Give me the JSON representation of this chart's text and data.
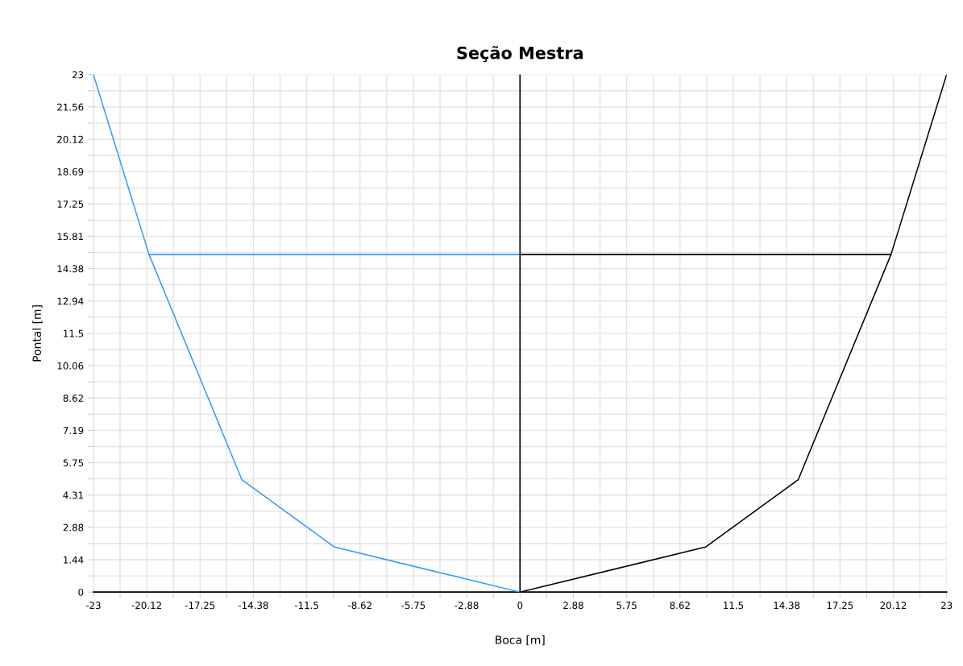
{
  "chart_data": {
    "type": "line",
    "title": "Seção Mestra",
    "xlabel": "Boca [m]",
    "ylabel": "Pontal [m]",
    "series": [
      {
        "color": "#3399ff",
        "x": [
          -23,
          -20,
          -15,
          -10,
          0
        ],
        "values": [
          23,
          15,
          5,
          2,
          0
        ]
      },
      {
        "color": "#3399ff",
        "x": [
          -20,
          0
        ],
        "values": [
          15,
          15
        ]
      },
      {
        "color": "#000000",
        "x": [
          0,
          10,
          15,
          20,
          23
        ],
        "values": [
          0,
          2,
          5,
          15,
          23
        ]
      },
      {
        "color": "#000000",
        "x": [
          0,
          20
        ],
        "values": [
          15,
          15
        ]
      }
    ],
    "ref_lines": [
      {
        "axis": "x",
        "value": 0,
        "color": "#000000"
      }
    ],
    "xlim": [
      -23,
      23
    ],
    "ylim": [
      0,
      23
    ],
    "xticks": [
      -23,
      {
        "value": -21.5625,
        "label": null
      },
      {
        "value": -20.125,
        "label": "-20.12"
      },
      {
        "value": -18.6875,
        "label": null
      },
      -17.25,
      {
        "value": -15.8125,
        "label": null
      },
      {
        "value": -14.375,
        "label": "-14.38"
      },
      {
        "value": -12.9375,
        "label": null
      },
      -11.5,
      {
        "value": -10.0625,
        "label": null
      },
      {
        "value": -8.625,
        "label": "-8.62"
      },
      {
        "value": -7.1875,
        "label": null
      },
      -5.75,
      {
        "value": -4.3125,
        "label": null
      },
      {
        "value": -2.875,
        "label": "-2.88"
      },
      {
        "value": -1.4375,
        "label": null
      },
      0,
      {
        "value": 1.4375,
        "label": null
      },
      {
        "value": 2.875,
        "label": "2.88"
      },
      {
        "value": 4.3125,
        "label": null
      },
      5.75,
      {
        "value": 7.1875,
        "label": null
      },
      {
        "value": 8.625,
        "label": "8.62"
      },
      {
        "value": 10.0625,
        "label": null
      },
      11.5,
      {
        "value": 12.9375,
        "label": null
      },
      {
        "value": 14.375,
        "label": "14.38"
      },
      {
        "value": 15.8125,
        "label": null
      },
      17.25,
      {
        "value": 18.6875,
        "label": null
      },
      {
        "value": 20.125,
        "label": "20.12"
      },
      {
        "value": 21.5625,
        "label": null
      },
      23
    ],
    "yticks": [
      0,
      {
        "value": 0.71875,
        "label": null
      },
      {
        "value": 1.4375,
        "label": "1.44"
      },
      {
        "value": 2.15625,
        "label": null
      },
      {
        "value": 2.875,
        "label": "2.88"
      },
      {
        "value": 3.59375,
        "label": null
      },
      {
        "value": 4.3125,
        "label": "4.31"
      },
      {
        "value": 5.03125,
        "label": null
      },
      5.75,
      {
        "value": 6.46875,
        "label": null
      },
      {
        "value": 7.1875,
        "label": "7.19"
      },
      {
        "value": 7.90625,
        "label": null
      },
      {
        "value": 8.625,
        "label": "8.62"
      },
      {
        "value": 9.34375,
        "label": null
      },
      {
        "value": 10.0625,
        "label": "10.06"
      },
      {
        "value": 10.78125,
        "label": null
      },
      11.5,
      {
        "value": 12.21875,
        "label": null
      },
      {
        "value": 12.9375,
        "label": "12.94"
      },
      {
        "value": 13.65625,
        "label": null
      },
      {
        "value": 14.375,
        "label": "14.38"
      },
      {
        "value": 15.09375,
        "label": null
      },
      {
        "value": 15.8125,
        "label": "15.81"
      },
      {
        "value": 16.53125,
        "label": null
      },
      17.25,
      {
        "value": 17.96875,
        "label": null
      },
      {
        "value": 18.6875,
        "label": "18.69"
      },
      {
        "value": 19.40625,
        "label": null
      },
      {
        "value": 20.125,
        "label": "20.12"
      },
      {
        "value": 20.84375,
        "label": null
      },
      {
        "value": 21.5625,
        "label": "21.56"
      },
      {
        "value": 22.28125,
        "label": null
      },
      23
    ],
    "grid": true,
    "marker": "none",
    "line_style": "solid",
    "legend": false
  }
}
